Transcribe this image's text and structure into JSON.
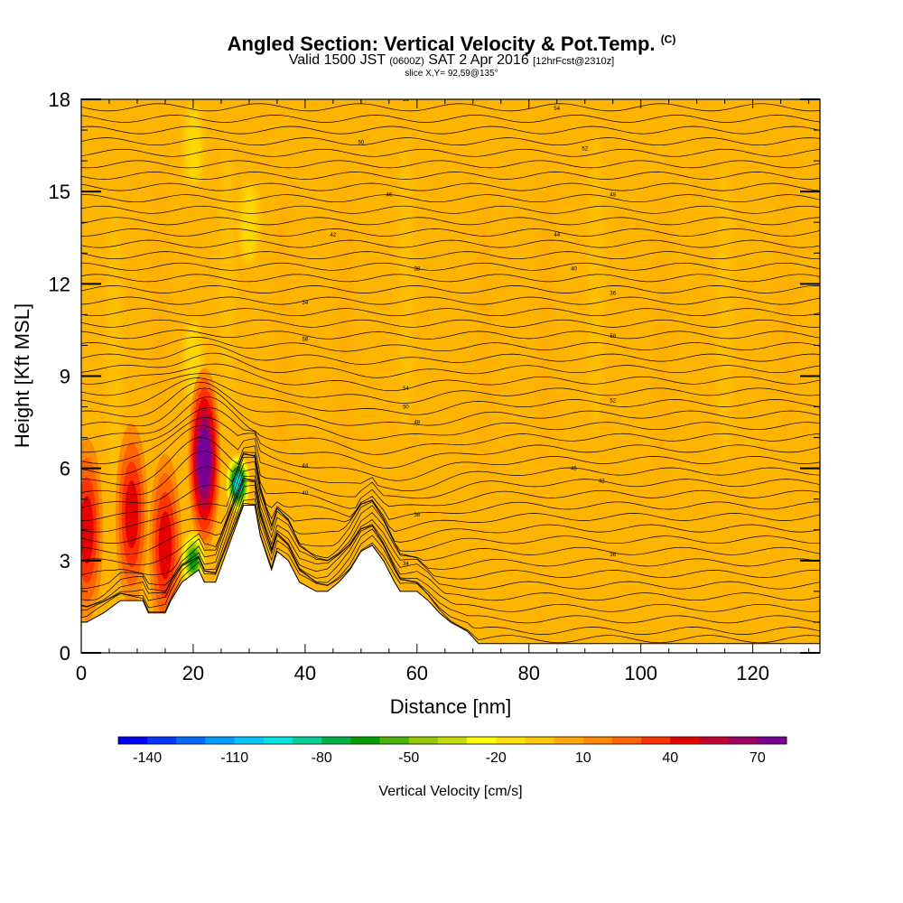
{
  "title": {
    "main": "Angled Section: Vertical Velocity & Pot.Temp.",
    "mark": "(C)",
    "line2_a": "Valid 1500 JST",
    "line2_b": "(0600Z)",
    "line2_c": "SAT 2 Apr 2016",
    "line2_d": "[12hrFcst@2310z]",
    "slice": "slice X,Y= 92,59@135°"
  },
  "chart_data": {
    "type": "heatmap",
    "title": "Angled Section: Vertical Velocity & Pot.Temp.",
    "xlabel": "Distance [nm]",
    "ylabel": "Height [Kft MSL]",
    "xlim": [
      0,
      132
    ],
    "ylim": [
      0,
      18
    ],
    "xticks": [
      "0",
      "20",
      "40",
      "60",
      "80",
      "100",
      "120"
    ],
    "yticks": [
      "0",
      "3",
      "6",
      "9",
      "12",
      "15",
      "18"
    ],
    "grid": false,
    "background_value_cm_s": "0 to 10 (orange)",
    "colorbar": {
      "label": "Vertical Velocity [cm/s]",
      "tick_labels": [
        "-140",
        "-110",
        "-80",
        "-50",
        "-20",
        "10",
        "40",
        "70"
      ],
      "tick_values": [
        -140,
        -110,
        -80,
        -50,
        -20,
        10,
        40,
        70
      ],
      "min": -150,
      "max": 80,
      "step": 10,
      "colors": [
        "#0000ff",
        "#0036ff",
        "#006cff",
        "#00a0ff",
        "#00c8ff",
        "#00e6e6",
        "#00d29b",
        "#00b44b",
        "#00a000",
        "#4bb400",
        "#96c800",
        "#c8dc00",
        "#ffff00",
        "#ffe100",
        "#ffc800",
        "#ffaa00",
        "#ff8c00",
        "#ff6400",
        "#ff3200",
        "#e60000",
        "#c80032",
        "#a00064",
        "#780096"
      ]
    },
    "terrain_height_kft": [
      [
        0,
        1.0
      ],
      [
        1,
        1.0
      ],
      [
        4,
        1.3
      ],
      [
        7,
        1.7
      ],
      [
        11,
        1.7
      ],
      [
        12,
        1.3
      ],
      [
        15,
        1.3
      ],
      [
        16,
        1.7
      ],
      [
        18,
        2.3
      ],
      [
        21,
        2.7
      ],
      [
        22,
        2.3
      ],
      [
        24,
        2.3
      ],
      [
        26,
        3.3
      ],
      [
        29,
        4.8
      ],
      [
        31,
        4.8
      ],
      [
        32,
        3.8
      ],
      [
        34,
        2.7
      ],
      [
        35,
        3.3
      ],
      [
        37,
        3.0
      ],
      [
        39,
        2.3
      ],
      [
        42,
        2.0
      ],
      [
        44,
        2.0
      ],
      [
        46,
        2.3
      ],
      [
        48,
        2.7
      ],
      [
        50,
        3.3
      ],
      [
        52,
        3.5
      ],
      [
        54,
        3.0
      ],
      [
        56,
        2.3
      ],
      [
        57,
        2.0
      ],
      [
        60,
        2.0
      ],
      [
        62,
        1.7
      ],
      [
        64,
        1.3
      ],
      [
        66,
        1.0
      ],
      [
        69,
        0.7
      ],
      [
        71,
        0.3
      ],
      [
        132,
        0.3
      ]
    ],
    "updraft_cores": [
      {
        "x_nm": 1,
        "height_kft": 4.0,
        "max_cm_s": 40
      },
      {
        "x_nm": 9,
        "height_kft": 4.5,
        "max_cm_s": 40
      },
      {
        "x_nm": 15,
        "height_kft": 3.5,
        "max_cm_s": 40
      },
      {
        "x_nm": 22,
        "height_kft": 6.3,
        "max_cm_s": 80
      }
    ],
    "downdraft_cores": [
      {
        "x_nm": 20,
        "height_kft": 3.0,
        "min_cm_s": -70
      },
      {
        "x_nm": 28,
        "height_kft": 5.5,
        "min_cm_s": -100
      }
    ],
    "isentrope_labels": [
      "34",
      "36",
      "38",
      "40",
      "42",
      "44",
      "46",
      "48",
      "50",
      "52",
      "54",
      "56",
      "58"
    ]
  },
  "colorbar": {
    "label": "Vertical Velocity [cm/s]"
  }
}
